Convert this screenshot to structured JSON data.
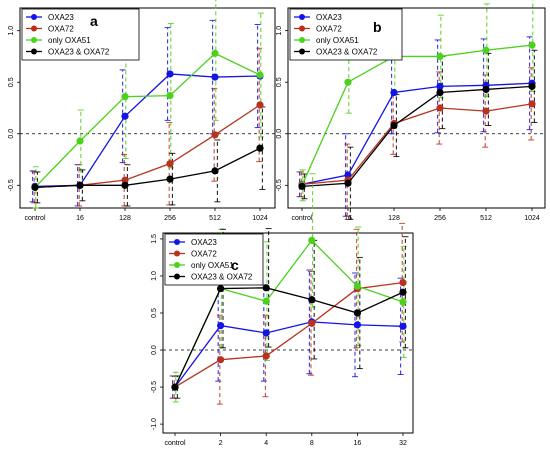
{
  "colors": {
    "oxa23": "#1414e6",
    "oxa72": "#b8321e",
    "only_oxa51": "#4cd11c",
    "oxa23_oxa72": "#000000",
    "reference_line": "#000000",
    "frame": "#000000"
  },
  "chart_data": [
    {
      "id": "a",
      "type": "line",
      "panel_label": "a",
      "x_tick_labels": [
        "control",
        "16",
        "128",
        "256",
        "512",
        "1024"
      ],
      "y_ticks": [
        -0.5,
        0.0,
        0.5,
        1.0
      ],
      "y_tick_labels": [
        "-0.5",
        "0.0",
        "0.5",
        "1.0"
      ],
      "ylim": [
        -0.72,
        1.22
      ],
      "reference_line_y": 0,
      "legend_position": "top-left",
      "series": [
        {
          "name": "OXA23",
          "color_key": "oxa23",
          "values": [
            -0.51,
            -0.5,
            0.17,
            0.58,
            0.55,
            0.56
          ],
          "err": [
            0.15,
            0.2,
            0.45,
            0.45,
            0.55,
            0.5
          ]
        },
        {
          "name": "OXA72",
          "color_key": "oxa72",
          "values": [
            -0.52,
            -0.5,
            -0.45,
            -0.29,
            -0.01,
            0.28
          ],
          "err": [
            0.15,
            0.2,
            0.25,
            0.4,
            0.45,
            0.55
          ]
        },
        {
          "name": "only OXA51",
          "color_key": "only_oxa51",
          "values": [
            -0.52,
            -0.07,
            0.36,
            0.37,
            0.78,
            0.57
          ],
          "err": [
            0.2,
            0.3,
            0.6,
            0.7,
            0.65,
            0.6
          ]
        },
        {
          "name": "OXA23 & OXA72",
          "color_key": "oxa23_oxa72",
          "values": [
            -0.52,
            -0.5,
            -0.5,
            -0.44,
            -0.36,
            -0.14
          ],
          "err": [
            0.15,
            0.15,
            0.2,
            0.25,
            0.3,
            0.4
          ]
        }
      ]
    },
    {
      "id": "b",
      "type": "line",
      "panel_label": "b",
      "x_tick_labels": [
        "control",
        "16",
        "128",
        "256",
        "512",
        "1024"
      ],
      "y_ticks": [
        -0.5,
        0.0,
        0.5,
        1.0
      ],
      "y_tick_labels": [
        "-0.5",
        "0.0",
        "0.5",
        "1.0"
      ],
      "ylim": [
        -0.72,
        1.22
      ],
      "reference_line_y": 0,
      "legend_position": "top-left",
      "series": [
        {
          "name": "OXA23",
          "color_key": "oxa23",
          "values": [
            -0.49,
            -0.4,
            0.4,
            0.46,
            0.47,
            0.49
          ],
          "err": [
            0.12,
            0.4,
            0.4,
            0.45,
            0.45,
            0.45
          ]
        },
        {
          "name": "OXA72",
          "color_key": "oxa72",
          "values": [
            -0.49,
            -0.45,
            0.1,
            0.25,
            0.22,
            0.29
          ],
          "err": [
            0.12,
            0.35,
            0.3,
            0.35,
            0.35,
            0.35
          ]
        },
        {
          "name": "only OXA51",
          "color_key": "only_oxa51",
          "values": [
            -0.5,
            0.5,
            0.75,
            0.75,
            0.81,
            0.86
          ],
          "err": [
            0.15,
            0.3,
            0.35,
            0.4,
            0.45,
            0.45
          ]
        },
        {
          "name": "OXA23 & OXA72",
          "color_key": "oxa23_oxa72",
          "values": [
            -0.51,
            -0.48,
            0.08,
            0.4,
            0.43,
            0.46
          ],
          "err": [
            0.12,
            0.35,
            0.3,
            0.35,
            0.35,
            0.35
          ]
        }
      ]
    },
    {
      "id": "c",
      "type": "line",
      "panel_label": "c",
      "x_tick_labels": [
        "control",
        "2",
        "4",
        "8",
        "16",
        "32"
      ],
      "y_ticks": [
        -1.0,
        -0.5,
        0.0,
        0.5,
        1.0,
        1.5
      ],
      "y_tick_labels": [
        "-1.0",
        "-0.5",
        "0.0",
        "0.5",
        "1.0",
        "1.5"
      ],
      "ylim": [
        -1.12,
        1.58
      ],
      "reference_line_y": 0,
      "legend_position": "top-left",
      "series": [
        {
          "name": "OXA23",
          "color_key": "oxa23",
          "values": [
            -0.5,
            0.33,
            0.23,
            0.38,
            0.34,
            0.32
          ],
          "err": [
            0.15,
            0.75,
            0.65,
            0.7,
            0.7,
            0.65
          ]
        },
        {
          "name": "OXA72",
          "color_key": "oxa72",
          "values": [
            -0.5,
            -0.13,
            -0.08,
            0.36,
            0.83,
            0.91
          ],
          "err": [
            0.15,
            0.6,
            0.55,
            0.7,
            0.8,
            0.8
          ]
        },
        {
          "name": "only OXA51",
          "color_key": "only_oxa51",
          "values": [
            -0.5,
            0.83,
            0.66,
            1.48,
            0.86,
            0.65
          ],
          "err": [
            0.2,
            0.8,
            0.8,
            0.9,
            0.8,
            0.75
          ]
        },
        {
          "name": "OXA23 & OXA72",
          "color_key": "oxa23_oxa72",
          "values": [
            -0.5,
            0.83,
            0.84,
            0.68,
            0.5,
            0.78
          ],
          "err": [
            0.15,
            0.8,
            0.8,
            0.8,
            0.75,
            0.75
          ]
        }
      ]
    }
  ]
}
